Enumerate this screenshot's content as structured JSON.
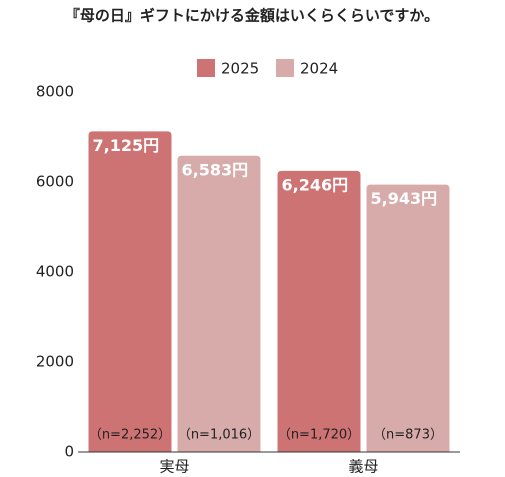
{
  "chart_data": {
    "type": "bar",
    "title": "『母の日』ギフトにかける金額はいくらくらいですか。",
    "categories": [
      "実母",
      "義母"
    ],
    "series": [
      {
        "name": "2025",
        "color": "#cd7374",
        "values": [
          7125,
          6246
        ],
        "value_labels": [
          "7,125円",
          "6,246円"
        ],
        "n_labels": [
          "（n=2,252）",
          "（n=1,720）"
        ]
      },
      {
        "name": "2024",
        "color": "#d8abab",
        "values": [
          6583,
          5943
        ],
        "value_labels": [
          "6,583円",
          "5,943円"
        ],
        "n_labels": [
          "（n=1,016）",
          "（n=873）"
        ]
      }
    ],
    "ylim": [
      0,
      8000
    ],
    "yticks": [
      0,
      2000,
      4000,
      6000,
      8000
    ],
    "grid": false,
    "legend": "top"
  }
}
